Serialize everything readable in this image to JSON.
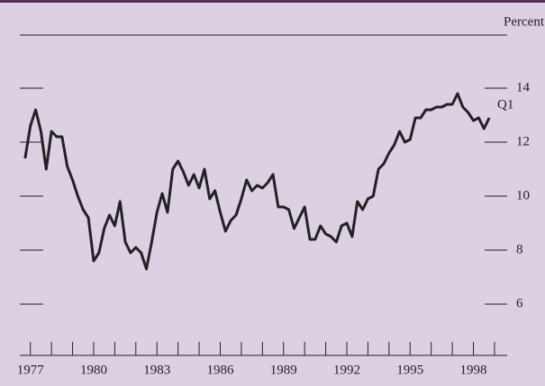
{
  "chart_data": {
    "type": "line",
    "header": "Percent",
    "annotation": "Q1",
    "x": [
      1976.75,
      1977,
      1977.25,
      1977.5,
      1977.75,
      1978,
      1978.25,
      1978.5,
      1978.75,
      1979,
      1979.25,
      1979.5,
      1979.75,
      1980,
      1980.25,
      1980.5,
      1980.75,
      1981,
      1981.25,
      1981.5,
      1981.75,
      1982,
      1982.25,
      1982.5,
      1982.75,
      1983,
      1983.25,
      1983.5,
      1983.75,
      1984,
      1984.25,
      1984.5,
      1984.75,
      1985,
      1985.25,
      1985.5,
      1985.75,
      1986,
      1986.25,
      1986.5,
      1986.75,
      1987,
      1987.25,
      1987.5,
      1987.75,
      1988,
      1988.25,
      1988.5,
      1988.75,
      1989,
      1989.25,
      1989.5,
      1989.75,
      1990,
      1990.25,
      1990.5,
      1990.75,
      1991,
      1991.25,
      1991.5,
      1991.75,
      1992,
      1992.25,
      1992.5,
      1992.75,
      1993,
      1993.25,
      1993.5,
      1993.75,
      1994,
      1994.25,
      1994.5,
      1994.75,
      1995,
      1995.25,
      1995.5,
      1995.75,
      1996,
      1996.25,
      1996.5,
      1996.75,
      1997,
      1997.25,
      1997.5,
      1997.75,
      1998,
      1998.25,
      1998.5,
      1998.75
    ],
    "series": [
      {
        "color": "#222222",
        "values": [
          11.4,
          12.6,
          13.2,
          12.4,
          11.0,
          12.4,
          12.2,
          12.2,
          11.1,
          10.6,
          10.0,
          9.5,
          9.2,
          7.6,
          7.9,
          8.8,
          9.3,
          8.9,
          9.8,
          8.3,
          7.9,
          8.1,
          7.9,
          7.3,
          8.3,
          9.4,
          10.1,
          9.4,
          11.0,
          11.3,
          10.9,
          10.4,
          10.8,
          10.3,
          11.0,
          9.9,
          10.2,
          9.4,
          8.7,
          9.1,
          9.3,
          9.9,
          10.6,
          10.2,
          10.4,
          10.3,
          10.5,
          10.8,
          9.6,
          9.6,
          9.5,
          8.8,
          9.2,
          9.6,
          8.4,
          8.4,
          8.9,
          8.6,
          8.5,
          8.3,
          8.9,
          9.0,
          8.5,
          9.8,
          9.5,
          9.9,
          10.0,
          11.0,
          11.2,
          11.6,
          11.9,
          12.4,
          12.0,
          12.1,
          12.9,
          12.9,
          13.2,
          13.2,
          13.3,
          13.3,
          13.4,
          13.4,
          13.8,
          13.3,
          13.1,
          12.8,
          12.9,
          12.5,
          12.9
        ]
      }
    ],
    "xlim": [
      1976.5,
      1999.6
    ],
    "xticks": [
      1977,
      1978,
      1979,
      1980,
      1981,
      1982,
      1983,
      1984,
      1985,
      1986,
      1987,
      1988,
      1989,
      1990,
      1991,
      1992,
      1993,
      1994,
      1995,
      1996,
      1997,
      1998,
      1999
    ],
    "xlabels": [
      1977,
      1980,
      1983,
      1986,
      1989,
      1992,
      1995,
      1998
    ],
    "ylim": [
      4.1,
      16
    ],
    "yticks": [
      6,
      8,
      10,
      12,
      14
    ],
    "background": "#ddd0e3"
  }
}
